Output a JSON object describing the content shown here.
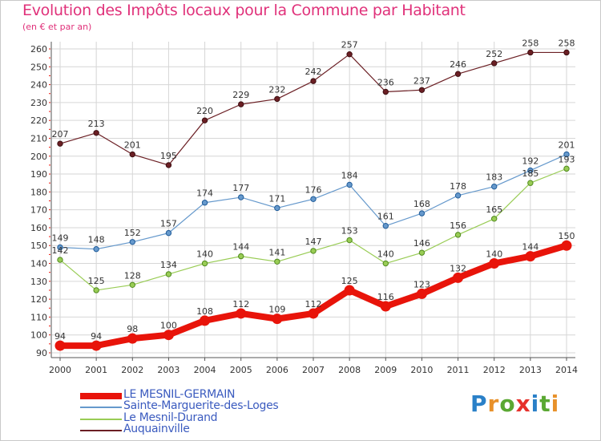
{
  "chart_data": {
    "type": "line",
    "title": "Evolution des Impôts locaux pour la Commune par Habitant",
    "subtitle": "(en € et par an)",
    "x": [
      "2000",
      "2001",
      "2002",
      "2003",
      "2004",
      "2005",
      "2006",
      "2007",
      "2008",
      "2009",
      "2010",
      "2011",
      "2012",
      "2013",
      "2014"
    ],
    "ylim": [
      90,
      260
    ],
    "yticks": [
      "90",
      "100",
      "110",
      "120",
      "130",
      "140",
      "150",
      "160",
      "170",
      "180",
      "190",
      "200",
      "210",
      "220",
      "230",
      "240",
      "250",
      "260"
    ],
    "grid": true,
    "legend_position": "bottom-left",
    "series": [
      {
        "name": "LE MESNIL-GERMAIN",
        "color": "#e8140a",
        "values": [
          94,
          94,
          98,
          100,
          108,
          112,
          109,
          112,
          125,
          116,
          123,
          132,
          140,
          144,
          150
        ]
      },
      {
        "name": "Sainte-Marguerite-des-Loges",
        "color": "#6699cc",
        "values": [
          149,
          148,
          152,
          157,
          174,
          177,
          171,
          176,
          184,
          161,
          168,
          178,
          183,
          192,
          201
        ]
      },
      {
        "name": "Le Mesnil-Durand",
        "color": "#99cc55",
        "values": [
          142,
          125,
          128,
          134,
          140,
          144,
          141,
          147,
          153,
          140,
          146,
          156,
          165,
          185,
          193
        ]
      },
      {
        "name": "Auquainville",
        "color": "#6b1f24",
        "values": [
          207,
          213,
          201,
          195,
          220,
          229,
          232,
          242,
          257,
          236,
          237,
          246,
          252,
          258,
          258
        ]
      }
    ]
  },
  "logo": {
    "letters": [
      "P",
      "r",
      "o",
      "x",
      "i",
      "t",
      "i"
    ],
    "colors": [
      "#2a80c8",
      "#e8912a",
      "#5aa832",
      "#e6312b",
      "#2a80c8",
      "#5aa832",
      "#e8912a"
    ]
  }
}
